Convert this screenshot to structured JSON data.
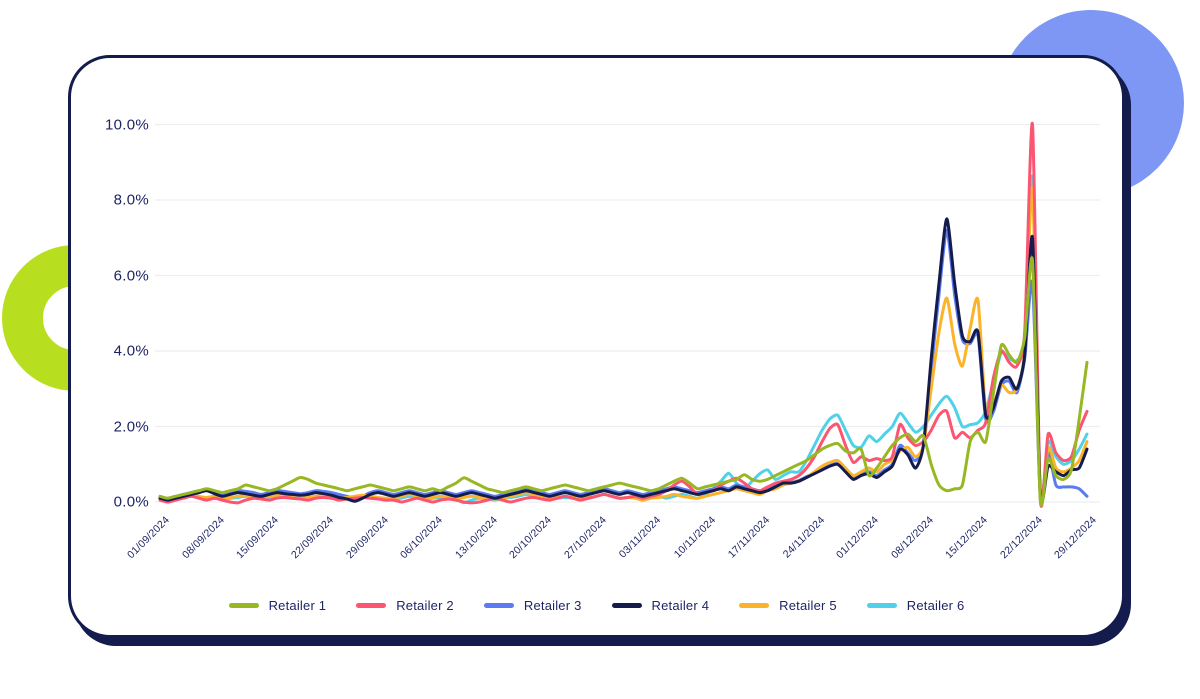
{
  "page": {
    "background": "#ffffff"
  },
  "decorations": {
    "blue_circle_color": "#7e97f5",
    "lime_arc_color": "#b8df1f",
    "card_border_color": "#141b4d",
    "card_background": "#ffffff"
  },
  "chart_data": {
    "type": "line",
    "title": "",
    "xlabel": "",
    "ylabel": "",
    "ylim": [
      0,
      10
    ],
    "grid": true,
    "granularity": "daily",
    "legend_position": "bottom",
    "x_label_rotation": -45,
    "y_ticks": [
      "10.0%",
      "8.0%",
      "6.0%",
      "4.0%",
      "2.0%",
      "0.0%"
    ],
    "y_tick_values": [
      10,
      8,
      6,
      4,
      2,
      0
    ],
    "x_tick_labels": [
      "01/09/2024",
      "08/09/2024",
      "15/09/2024",
      "22/09/2024",
      "29/09/2024",
      "06/10/2024",
      "13/10/2024",
      "20/10/2024",
      "27/10/2024",
      "03/11/2024",
      "10/11/2024",
      "17/11/2024",
      "24/11/2024",
      "01/12/2024",
      "08/12/2024",
      "15/12/2024",
      "22/12/2024",
      "29/12/2024"
    ],
    "x_tick_days": [
      0,
      7,
      14,
      21,
      28,
      35,
      42,
      49,
      56,
      63,
      70,
      77,
      84,
      91,
      98,
      105,
      112,
      119
    ],
    "grid_color": "#ededf2",
    "text_color": "#1e2566",
    "series": [
      {
        "name": "Retailer 1",
        "color": "#97b723",
        "values": [
          0.15,
          0.1,
          0.15,
          0.2,
          0.25,
          0.3,
          0.35,
          0.3,
          0.25,
          0.3,
          0.35,
          0.45,
          0.4,
          0.35,
          0.3,
          0.35,
          0.45,
          0.55,
          0.65,
          0.6,
          0.5,
          0.45,
          0.4,
          0.35,
          0.3,
          0.35,
          0.4,
          0.45,
          0.4,
          0.35,
          0.3,
          0.35,
          0.4,
          0.35,
          0.3,
          0.35,
          0.3,
          0.4,
          0.5,
          0.64,
          0.55,
          0.45,
          0.35,
          0.3,
          0.25,
          0.3,
          0.35,
          0.4,
          0.35,
          0.3,
          0.35,
          0.4,
          0.45,
          0.4,
          0.35,
          0.3,
          0.35,
          0.4,
          0.45,
          0.5,
          0.45,
          0.4,
          0.35,
          0.3,
          0.35,
          0.45,
          0.55,
          0.63,
          0.5,
          0.35,
          0.4,
          0.45,
          0.5,
          0.55,
          0.6,
          0.72,
          0.6,
          0.55,
          0.6,
          0.7,
          0.8,
          0.9,
          1.0,
          1.1,
          1.25,
          1.4,
          1.5,
          1.55,
          1.35,
          1.3,
          1.4,
          0.7,
          0.9,
          1.2,
          1.5,
          1.7,
          1.8,
          1.6,
          1.75,
          1.0,
          0.45,
          0.3,
          0.35,
          0.45,
          1.6,
          1.85,
          1.6,
          2.9,
          4.15,
          3.9,
          3.7,
          4.35,
          6.4,
          0.05,
          1.15,
          0.7,
          0.6,
          0.85,
          2.2,
          3.7
        ]
      },
      {
        "name": "Retailer 2",
        "color": "#fb5571",
        "values": [
          0.05,
          0.0,
          0.05,
          0.1,
          0.15,
          0.1,
          0.05,
          0.1,
          0.05,
          0.0,
          -0.02,
          0.05,
          0.1,
          0.08,
          0.05,
          0.1,
          0.12,
          0.1,
          0.08,
          0.05,
          0.1,
          0.12,
          0.1,
          0.05,
          0.08,
          0.1,
          0.12,
          0.1,
          0.08,
          0.05,
          0.05,
          0.0,
          0.05,
          0.1,
          0.05,
          0.0,
          0.05,
          0.08,
          0.05,
          0.0,
          -0.02,
          0.0,
          0.05,
          0.1,
          0.05,
          0.0,
          0.05,
          0.1,
          0.12,
          0.08,
          0.05,
          0.1,
          0.15,
          0.1,
          0.05,
          0.1,
          0.15,
          0.2,
          0.15,
          0.1,
          0.12,
          0.15,
          0.1,
          0.15,
          0.2,
          0.3,
          0.45,
          0.55,
          0.4,
          0.2,
          0.25,
          0.3,
          0.45,
          0.55,
          0.63,
          0.5,
          0.35,
          0.3,
          0.4,
          0.5,
          0.55,
          0.6,
          0.7,
          0.9,
          1.2,
          1.6,
          1.95,
          2.05,
          1.5,
          1.05,
          1.2,
          1.1,
          1.15,
          1.1,
          1.2,
          2.05,
          1.7,
          1.5,
          1.6,
          1.9,
          2.3,
          2.4,
          1.7,
          1.85,
          1.7,
          1.9,
          2.1,
          3.3,
          4.0,
          3.7,
          3.6,
          4.5,
          10.0,
          0.1,
          1.8,
          1.3,
          1.1,
          1.2,
          1.9,
          2.4
        ]
      },
      {
        "name": "Retailer 3",
        "color": "#5a7cf0",
        "values": [
          0.12,
          0.1,
          0.15,
          0.2,
          0.25,
          0.3,
          0.32,
          0.25,
          0.2,
          0.25,
          0.3,
          0.28,
          0.25,
          0.2,
          0.25,
          0.3,
          0.28,
          0.25,
          0.22,
          0.25,
          0.3,
          0.28,
          0.25,
          0.2,
          0.15,
          0.1,
          0.15,
          0.25,
          0.3,
          0.25,
          0.2,
          0.25,
          0.3,
          0.25,
          0.2,
          0.25,
          0.3,
          0.25,
          0.2,
          0.25,
          0.3,
          0.25,
          0.2,
          0.15,
          0.2,
          0.25,
          0.3,
          0.35,
          0.3,
          0.25,
          0.2,
          0.25,
          0.3,
          0.25,
          0.2,
          0.25,
          0.3,
          0.35,
          0.3,
          0.25,
          0.3,
          0.25,
          0.2,
          0.25,
          0.3,
          0.35,
          0.4,
          0.35,
          0.3,
          0.25,
          0.3,
          0.35,
          0.4,
          0.35,
          0.45,
          0.4,
          0.35,
          0.3,
          0.35,
          0.45,
          0.5,
          0.52,
          0.57,
          0.67,
          0.77,
          0.87,
          0.97,
          1.02,
          0.82,
          0.62,
          0.72,
          0.8,
          0.7,
          0.85,
          1.0,
          1.5,
          1.3,
          1.1,
          1.5,
          3.5,
          5.5,
          7.2,
          5.5,
          4.3,
          4.2,
          4.4,
          2.2,
          2.4,
          3.1,
          3.2,
          2.9,
          3.8,
          5.8,
          0.15,
          1.3,
          0.45,
          0.4,
          0.4,
          0.35,
          0.15
        ]
      },
      {
        "name": "Retailer 4",
        "color": "#141b4d",
        "values": [
          0.1,
          0.05,
          0.1,
          0.15,
          0.2,
          0.25,
          0.3,
          0.22,
          0.15,
          0.2,
          0.25,
          0.22,
          0.18,
          0.15,
          0.2,
          0.25,
          0.22,
          0.2,
          0.18,
          0.2,
          0.25,
          0.22,
          0.18,
          0.12,
          0.08,
          0.02,
          0.1,
          0.2,
          0.25,
          0.2,
          0.15,
          0.2,
          0.25,
          0.2,
          0.15,
          0.2,
          0.25,
          0.2,
          0.15,
          0.2,
          0.25,
          0.2,
          0.15,
          0.1,
          0.15,
          0.2,
          0.25,
          0.3,
          0.25,
          0.2,
          0.15,
          0.2,
          0.25,
          0.2,
          0.15,
          0.2,
          0.25,
          0.3,
          0.25,
          0.2,
          0.25,
          0.2,
          0.15,
          0.2,
          0.25,
          0.3,
          0.35,
          0.3,
          0.25,
          0.2,
          0.25,
          0.3,
          0.35,
          0.3,
          0.4,
          0.35,
          0.3,
          0.25,
          0.3,
          0.4,
          0.5,
          0.5,
          0.55,
          0.65,
          0.75,
          0.85,
          0.95,
          1.0,
          0.8,
          0.6,
          0.7,
          0.75,
          0.65,
          0.8,
          0.95,
          1.4,
          1.25,
          0.9,
          1.5,
          3.8,
          5.8,
          7.5,
          5.8,
          4.4,
          4.25,
          4.5,
          2.3,
          2.5,
          3.2,
          3.3,
          3.0,
          3.9,
          7.0,
          0.2,
          0.95,
          0.8,
          0.7,
          0.85,
          0.9,
          1.4
        ]
      },
      {
        "name": "Retailer 5",
        "color": "#fbb42a",
        "values": [
          0.1,
          0.08,
          0.1,
          0.15,
          0.2,
          0.15,
          0.12,
          0.15,
          0.1,
          0.12,
          0.15,
          0.18,
          0.15,
          0.12,
          0.15,
          0.18,
          0.15,
          0.12,
          0.1,
          0.12,
          0.15,
          0.18,
          0.15,
          0.1,
          0.12,
          0.15,
          0.18,
          0.15,
          0.12,
          0.1,
          0.1,
          0.15,
          0.2,
          0.15,
          0.1,
          0.12,
          0.15,
          0.12,
          0.1,
          0.12,
          0.15,
          0.12,
          0.1,
          0.08,
          0.1,
          0.15,
          0.2,
          0.25,
          0.2,
          0.15,
          0.1,
          0.12,
          0.15,
          0.12,
          0.1,
          0.12,
          0.15,
          0.2,
          0.15,
          0.1,
          0.12,
          0.1,
          0.05,
          0.1,
          0.12,
          0.15,
          0.2,
          0.15,
          0.12,
          0.1,
          0.15,
          0.2,
          0.25,
          0.3,
          0.35,
          0.3,
          0.25,
          0.2,
          0.3,
          0.35,
          0.45,
          0.5,
          0.55,
          0.65,
          0.8,
          0.95,
          1.05,
          1.1,
          0.9,
          0.7,
          0.8,
          0.9,
          0.8,
          1.0,
          1.1,
          1.35,
          1.45,
          1.2,
          1.5,
          3.0,
          4.5,
          5.4,
          4.2,
          3.6,
          4.6,
          5.35,
          2.4,
          2.6,
          3.1,
          2.9,
          3.0,
          4.0,
          8.3,
          0.15,
          1.45,
          0.9,
          0.8,
          0.9,
          1.1,
          1.6
        ]
      },
      {
        "name": "Retailer 6",
        "color": "#4fd1e9",
        "values": [
          0.08,
          0.05,
          0.08,
          0.12,
          0.15,
          0.12,
          0.1,
          0.12,
          0.08,
          0.1,
          0.12,
          0.15,
          0.12,
          0.1,
          0.12,
          0.15,
          0.12,
          0.1,
          0.08,
          0.1,
          0.15,
          0.12,
          0.1,
          0.08,
          0.1,
          0.12,
          0.15,
          0.12,
          0.1,
          0.08,
          0.08,
          0.1,
          0.15,
          0.1,
          0.08,
          0.1,
          0.12,
          0.1,
          0.08,
          -0.02,
          0.05,
          0.1,
          0.08,
          0.05,
          0.1,
          0.12,
          0.15,
          0.2,
          0.15,
          0.1,
          0.08,
          0.1,
          0.12,
          0.1,
          0.08,
          0.1,
          0.15,
          0.2,
          0.15,
          0.1,
          0.12,
          0.1,
          0.05,
          0.1,
          0.15,
          0.1,
          0.15,
          0.2,
          0.15,
          0.1,
          0.2,
          0.35,
          0.55,
          0.76,
          0.5,
          0.35,
          0.55,
          0.75,
          0.85,
          0.6,
          0.7,
          0.8,
          0.8,
          1.1,
          1.5,
          1.9,
          2.2,
          2.3,
          1.9,
          1.5,
          1.45,
          1.75,
          1.6,
          1.8,
          2.0,
          2.35,
          2.1,
          1.85,
          2.0,
          2.3,
          2.6,
          2.8,
          2.5,
          2.0,
          2.05,
          2.1,
          2.4,
          3.2,
          3.95,
          3.8,
          3.75,
          4.3,
          8.6,
          0.2,
          1.6,
          1.2,
          1.0,
          1.1,
          1.4,
          1.8
        ]
      }
    ]
  }
}
